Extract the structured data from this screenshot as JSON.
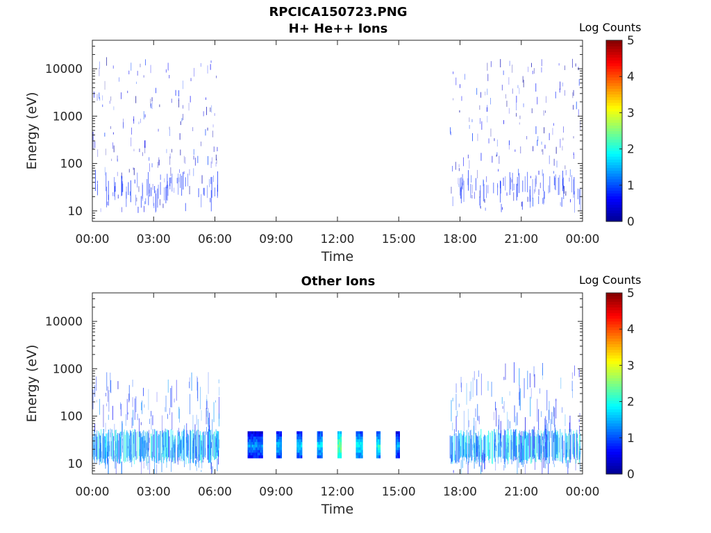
{
  "figure_title": "RPCICA150723.PNG",
  "colormap": [
    "#00008f",
    "#0000ff",
    "#0080ff",
    "#00ffff",
    "#80ff80",
    "#ffff00",
    "#ff8000",
    "#ff0000",
    "#800000"
  ],
  "chart_data": [
    {
      "type": "heatmap",
      "title": "H+ He++ Ions",
      "xlabel": "Time",
      "ylabel": "Energy (eV)",
      "x_ticks": [
        "00:00",
        "03:00",
        "06:00",
        "09:00",
        "12:00",
        "15:00",
        "18:00",
        "21:00",
        "00:00"
      ],
      "xlim_hours": [
        0,
        24
      ],
      "y_scale": "log",
      "y_ticks": [
        "10",
        "100",
        "1000",
        "10000"
      ],
      "ylim": [
        6,
        40000
      ],
      "colorbar": {
        "label": "Log Counts",
        "ticks": [
          "0",
          "1",
          "2",
          "3",
          "4",
          "5"
        ],
        "range": [
          0,
          5
        ]
      },
      "activity": [
        {
          "start_hour": 0.0,
          "end_hour": 6.2,
          "emin": 10,
          "emax": 15000,
          "log_counts": 0.3,
          "pattern": "sparse"
        },
        {
          "start_hour": 17.5,
          "end_hour": 23.9,
          "emin": 10,
          "emax": 15000,
          "log_counts": 0.3,
          "pattern": "sparse"
        }
      ]
    },
    {
      "type": "heatmap",
      "title": "Other Ions",
      "xlabel": "Time",
      "ylabel": "Energy (eV)",
      "x_ticks": [
        "00:00",
        "03:00",
        "06:00",
        "09:00",
        "12:00",
        "15:00",
        "18:00",
        "21:00",
        "00:00"
      ],
      "xlim_hours": [
        0,
        24
      ],
      "y_scale": "log",
      "y_ticks": [
        "10",
        "100",
        "1000",
        "10000"
      ],
      "ylim": [
        6,
        40000
      ],
      "colorbar": {
        "label": "Log Counts",
        "ticks": [
          "0",
          "1",
          "2",
          "3",
          "4",
          "5"
        ],
        "range": [
          0,
          5
        ]
      },
      "activity": [
        {
          "start_hour": 0.0,
          "end_hour": 6.2,
          "emin": 12,
          "emax": 45,
          "log_counts": 1.5,
          "pattern": "dense"
        },
        {
          "start_hour": 0.0,
          "end_hour": 6.2,
          "emin": 6,
          "emax": 600,
          "log_counts": 0.7,
          "pattern": "sparse"
        },
        {
          "start_hour": 17.5,
          "end_hour": 23.9,
          "emin": 12,
          "emax": 45,
          "log_counts": 1.5,
          "pattern": "dense"
        },
        {
          "start_hour": 17.5,
          "end_hour": 23.9,
          "emin": 6,
          "emax": 1000,
          "log_counts": 0.7,
          "pattern": "sparse"
        }
      ],
      "blocks": [
        {
          "start_hour": 7.6,
          "end_hour": 8.3,
          "emin": 13,
          "emax": 48,
          "log_counts": 1.0
        },
        {
          "start_hour": 9.0,
          "end_hour": 9.25,
          "emin": 13,
          "emax": 48,
          "log_counts": 1.2
        },
        {
          "start_hour": 10.0,
          "end_hour": 10.25,
          "emin": 13,
          "emax": 48,
          "log_counts": 1.3
        },
        {
          "start_hour": 11.0,
          "end_hour": 11.25,
          "emin": 13,
          "emax": 48,
          "log_counts": 1.4
        },
        {
          "start_hour": 12.0,
          "end_hour": 12.15,
          "emin": 13,
          "emax": 48,
          "log_counts": 2.1
        },
        {
          "start_hour": 12.9,
          "end_hour": 13.2,
          "emin": 13,
          "emax": 48,
          "log_counts": 1.5
        },
        {
          "start_hour": 13.9,
          "end_hour": 14.1,
          "emin": 13,
          "emax": 48,
          "log_counts": 1.6
        },
        {
          "start_hour": 14.85,
          "end_hour": 15.05,
          "emin": 13,
          "emax": 48,
          "log_counts": 1.1
        }
      ]
    }
  ]
}
